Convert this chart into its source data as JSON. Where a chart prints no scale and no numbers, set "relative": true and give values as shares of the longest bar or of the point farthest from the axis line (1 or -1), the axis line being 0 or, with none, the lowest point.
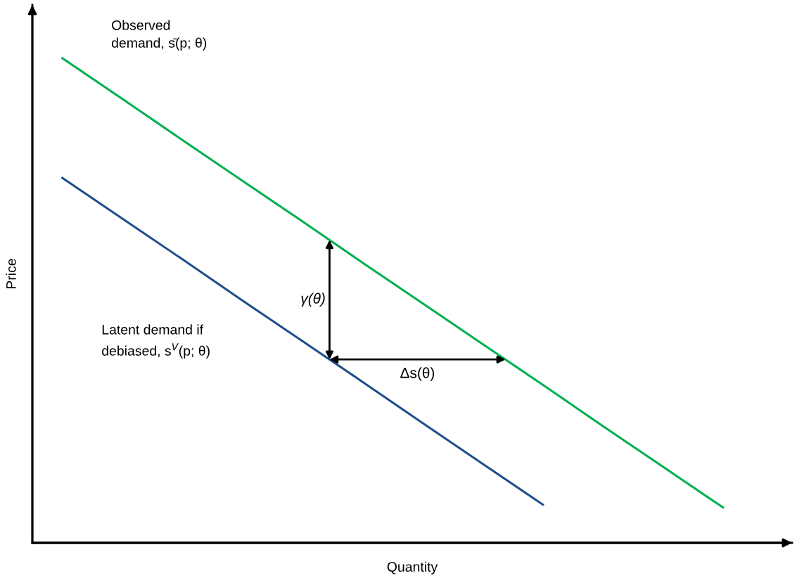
{
  "chart_data": {
    "type": "line",
    "relative": true,
    "xlabel": "Quantity",
    "ylabel": "Price",
    "grid": false,
    "legend": false,
    "marker": "none",
    "line_style": "solid",
    "categories": [
      null,
      null,
      null,
      null,
      null,
      null,
      null,
      null,
      null,
      null,
      null,
      null
    ],
    "series": [
      {
        "name": "Observed\ndemand, s̄(p; θ)",
        "color": "#00b050",
        "values": [
          1,
          0.916,
          0.831,
          0.747,
          0.663,
          0.578,
          0.494,
          0.41,
          0.326,
          0.241,
          0.157,
          0.073
        ]
      },
      {
        "name": "Latent demand if\ndebiased, s$^{V}$(p; θ)",
        "color": "#1f4e8c",
        "values": [
          0.753,
          0.669,
          0.585,
          0.5,
          0.416,
          0.332,
          0.247,
          0.163,
          0.079,
          null,
          null,
          null
        ]
      }
    ],
    "annotations": [
      "γ(θ)",
      "Δs(θ)"
    ]
  }
}
